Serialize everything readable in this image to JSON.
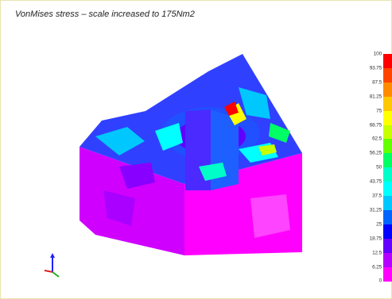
{
  "caption": "VonMises stress – scale increased to 175Nm2",
  "legend": {
    "ticks": [
      "100",
      "93.75",
      "87.5",
      "81.25",
      "75",
      "68.75",
      "62.5",
      "56.25",
      "50",
      "43.75",
      "37.5",
      "31.25",
      "25",
      "18.75",
      "12.5",
      "6.25",
      "0"
    ],
    "colors": [
      "#ff0000",
      "#ff4400",
      "#ff8c00",
      "#ffc800",
      "#ffff00",
      "#c8ff00",
      "#64ff00",
      "#00ff64",
      "#00ffc8",
      "#00ffff",
      "#00c8ff",
      "#0064ff",
      "#0000ff",
      "#6400ff",
      "#b400ff",
      "#ff00ff"
    ]
  },
  "model": {
    "type": "fea-contour-plot",
    "base_color": "#ff00ff",
    "accent_colors": [
      "#0000ff",
      "#00ffff",
      "#ffff00",
      "#ff0000"
    ]
  },
  "triad": {
    "icon": "coordinate-axes-icon",
    "colors": [
      "#2020ff",
      "#20b020",
      "#e02020"
    ]
  }
}
